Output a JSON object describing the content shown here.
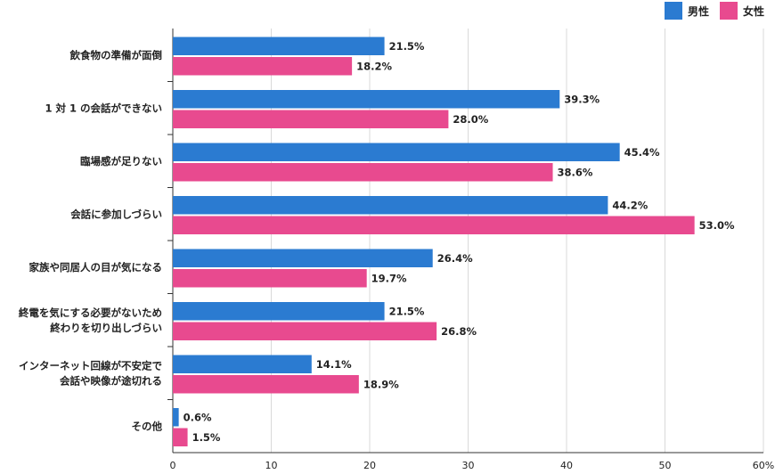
{
  "colors": {
    "male": "#2b7bd1",
    "female": "#e84a8f",
    "axis": "#333333",
    "grid": "#d9d9d9"
  },
  "chart_data": {
    "type": "bar",
    "orientation": "horizontal",
    "title": "",
    "xlabel": "",
    "ylabel": "",
    "xlim": [
      0,
      60
    ],
    "x_ticks": [
      "0",
      "10",
      "20",
      "30",
      "40",
      "50",
      "60%"
    ],
    "grid": true,
    "legend": "top-right",
    "categories": [
      [
        "飲食物の準備が面倒"
      ],
      [
        "1 対 1 の会話ができない"
      ],
      [
        "臨場感が足りない"
      ],
      [
        "会話に参加しづらい"
      ],
      [
        "家族や同居人の目が気になる"
      ],
      [
        "終電を気にする必要がないため",
        "終わりを切り出しづらい"
      ],
      [
        "インターネット回線が不安定で",
        "会話や映像が途切れる"
      ],
      [
        "その他"
      ]
    ],
    "series": [
      {
        "name": "男性",
        "values": [
          21.5,
          39.3,
          45.4,
          44.2,
          26.4,
          21.5,
          14.1,
          0.6
        ],
        "labels": [
          "21.5%",
          "39.3%",
          "45.4%",
          "44.2%",
          "26.4%",
          "21.5%",
          "14.1%",
          "0.6%"
        ]
      },
      {
        "name": "女性",
        "values": [
          18.2,
          28.0,
          38.6,
          53.0,
          19.7,
          26.8,
          18.9,
          1.5
        ],
        "labels": [
          "18.2%",
          "28.0%",
          "38.6%",
          "53.0%",
          "19.7%",
          "26.8%",
          "18.9%",
          "1.5%"
        ]
      }
    ]
  }
}
